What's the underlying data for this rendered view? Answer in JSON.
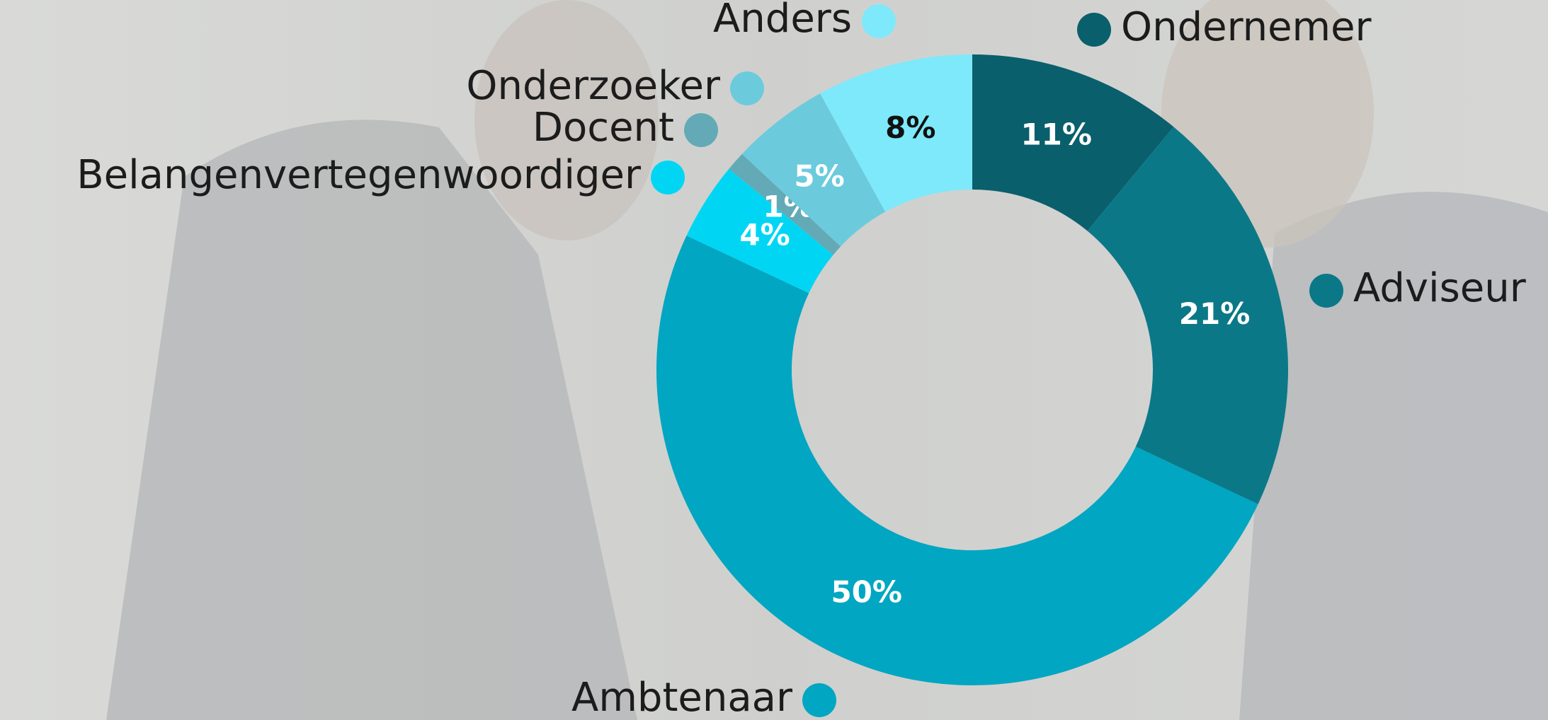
{
  "chart_data": {
    "type": "donut",
    "categories": [
      "Ondernemer",
      "Adviseur",
      "Ambtenaar",
      "Belangenvertegenwoordiger",
      "Docent",
      "Onderzoeker",
      "Anders"
    ],
    "values": [
      11,
      21,
      50,
      4,
      1,
      5,
      8
    ],
    "value_labels": [
      "11%",
      "21%",
      "50%",
      "4%",
      "1%",
      "5%",
      "8%"
    ],
    "colors": [
      "#0a5f6c",
      "#0b7888",
      "#00a6c2",
      "#00d6f4",
      "#63aab6",
      "#6bcbdd",
      "#7de9fb"
    ]
  }
}
